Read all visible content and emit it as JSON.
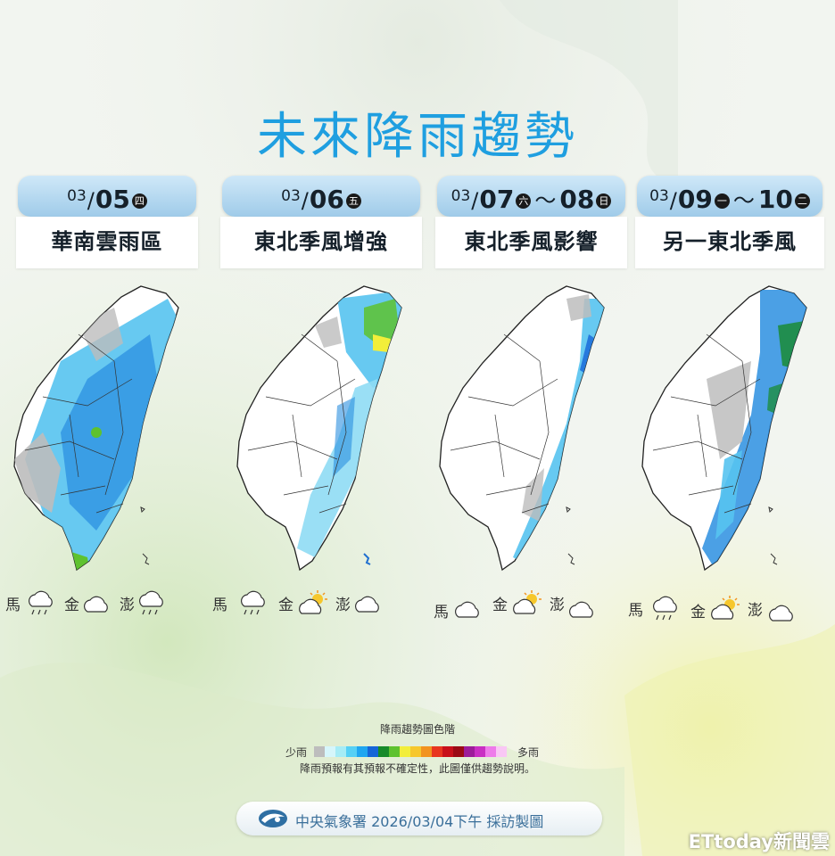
{
  "title": "未來降雨趨勢",
  "panels": [
    {
      "m": "03",
      "d": "05",
      "wd": "四",
      "m2": "",
      "d2": "",
      "wd2": "",
      "tilde": "",
      "label": "華南雲雨區"
    },
    {
      "m": "03",
      "d": "06",
      "wd": "五",
      "m2": "",
      "d2": "",
      "wd2": "",
      "tilde": "",
      "label": "東北季風增強"
    },
    {
      "m": "03",
      "d": "07",
      "wd": "六",
      "m2": "",
      "d2": "08",
      "wd2": "日",
      "tilde": "～",
      "label": "東北季風影響"
    },
    {
      "m": "03",
      "d": "09",
      "wd": "一",
      "m2": "",
      "d2": "10",
      "wd2": "二",
      "tilde": "～",
      "label": "另一東北季風"
    }
  ],
  "islands": {
    "matsu": "馬",
    "kinmen": "金",
    "penghu": "澎"
  },
  "island_weather": [
    [
      "rain-cloud-icon",
      "cloud-icon",
      "rain-cloud-icon"
    ],
    [
      "rain-cloud-icon",
      "sun-cloud-icon",
      "cloud-icon"
    ],
    [
      "cloud-icon",
      "sun-cloud-icon",
      "cloud-icon"
    ],
    [
      "rain-cloud-icon",
      "sun-cloud-icon",
      "cloud-icon"
    ]
  ],
  "legend": {
    "title": "降雨趨勢圖色階",
    "low": "少雨",
    "high": "多雨",
    "note": "降雨預報有其預報不確定性，此圖僅供趨勢說明。",
    "colors": [
      "#bdbdbd",
      "#d6f6fb",
      "#a6ecf6",
      "#56d0f5",
      "#1fa6f0",
      "#1665d8",
      "#178a2a",
      "#5ec22f",
      "#f2ee3a",
      "#f6c72c",
      "#f2931f",
      "#e8361f",
      "#c8101a",
      "#9b0a15",
      "#9d1c9a",
      "#c92fc3",
      "#ee7bea",
      "#f9c7f5"
    ]
  },
  "footer": {
    "text": "中央氣象署 2026/03/04下午 採訪製圖"
  },
  "watermark": "ETtoday新聞雲"
}
